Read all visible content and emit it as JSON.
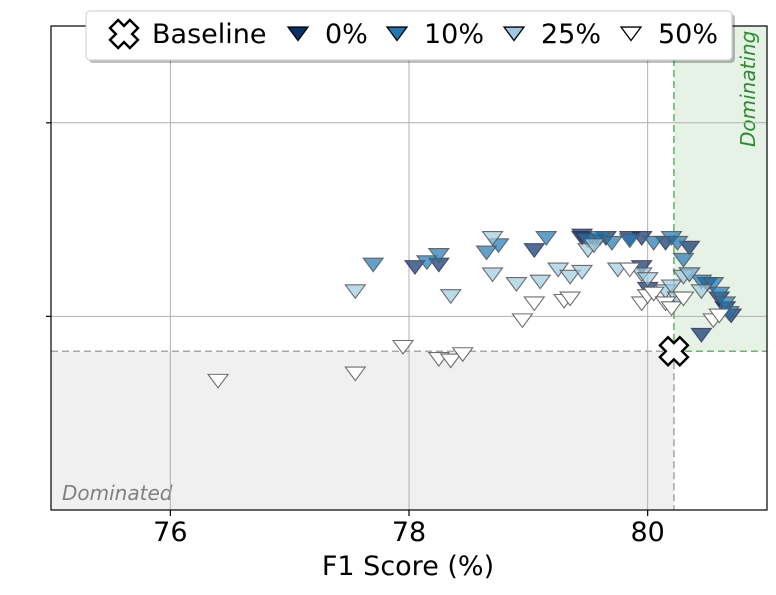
{
  "chart_data": {
    "type": "scatter",
    "xlabel": "F1 Score (%)",
    "ylabel": "",
    "xlim": [
      75.0,
      81.0
    ],
    "ylim": [
      0.0,
      1.0
    ],
    "x_ticks": [
      76,
      78,
      80
    ],
    "x_tick_labels": [
      "76",
      "78",
      "80"
    ],
    "y_axis_tick_labels_shown": false,
    "grid": true,
    "legend": {
      "placement": "top-center",
      "entries": [
        "Baseline",
        "0%",
        "10%",
        "25%",
        "50%"
      ]
    },
    "baseline": {
      "name": "Baseline",
      "x": 80.22,
      "y": 0.328,
      "color": "#ffffff",
      "marker": "cross"
    },
    "regions": {
      "dominating_label": "Dominating",
      "dominating_color": "#2e8b2e",
      "dominated_label": "Dominated",
      "dominated_color": "#808080"
    },
    "series": [
      {
        "name": "0%",
        "color": "#08306b",
        "marker": "triangle-down",
        "x": [
          79.45,
          79.65,
          79.85,
          79.95,
          80.15,
          80.35,
          80.5,
          80.6,
          80.65,
          80.7,
          78.05,
          78.25,
          79.05,
          79.45,
          79.55,
          79.95,
          80.45,
          80.0
        ],
        "y": [
          0.565,
          0.565,
          0.565,
          0.565,
          0.555,
          0.545,
          0.47,
          0.44,
          0.42,
          0.405,
          0.505,
          0.51,
          0.54,
          0.57,
          0.56,
          0.505,
          0.365,
          0.46
        ]
      },
      {
        "name": "10%",
        "color": "#1f78b4",
        "marker": "triangle-down",
        "x": [
          77.7,
          78.15,
          78.25,
          78.65,
          78.75,
          79.15,
          79.5,
          79.6,
          79.7,
          79.85,
          80.05,
          80.2,
          80.25,
          80.3,
          80.35,
          80.45,
          80.55,
          80.6,
          80.65,
          80.68
        ],
        "y": [
          0.51,
          0.515,
          0.53,
          0.535,
          0.55,
          0.565,
          0.56,
          0.565,
          0.555,
          0.56,
          0.555,
          0.565,
          0.555,
          0.52,
          0.49,
          0.475,
          0.47,
          0.45,
          0.43,
          0.41
        ]
      },
      {
        "name": "25%",
        "color": "#9ecae1",
        "marker": "triangle-down",
        "x": [
          77.55,
          78.35,
          78.7,
          78.9,
          79.1,
          79.25,
          79.35,
          79.45,
          79.5,
          79.55,
          79.75,
          79.95,
          80.0,
          80.15,
          80.2,
          80.25,
          80.3,
          80.35,
          80.45,
          78.7
        ],
        "y": [
          0.455,
          0.445,
          0.49,
          0.47,
          0.475,
          0.5,
          0.485,
          0.495,
          0.54,
          0.55,
          0.5,
          0.49,
          0.48,
          0.455,
          0.465,
          0.44,
          0.485,
          0.49,
          0.455,
          0.565
        ]
      },
      {
        "name": "50%",
        "color": "#ffffff",
        "marker": "triangle-down",
        "x": [
          76.4,
          77.55,
          77.95,
          78.25,
          78.35,
          78.45,
          78.95,
          79.05,
          79.3,
          79.35,
          79.95,
          80.0,
          80.05,
          80.15,
          80.2,
          80.3,
          80.55,
          80.6,
          79.85
        ],
        "y": [
          0.27,
          0.285,
          0.34,
          0.315,
          0.312,
          0.325,
          0.395,
          0.43,
          0.435,
          0.44,
          0.43,
          0.445,
          0.45,
          0.43,
          0.42,
          0.44,
          0.395,
          0.405,
          0.5
        ]
      }
    ]
  }
}
